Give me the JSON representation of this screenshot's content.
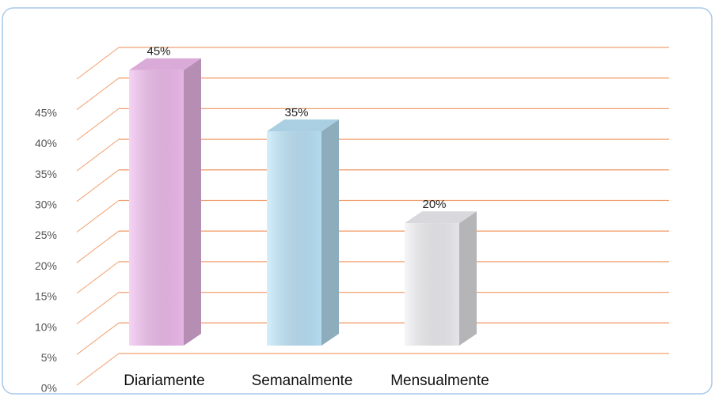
{
  "chart_data": {
    "type": "bar3d",
    "categories": [
      "Diariamente",
      "Semanalmente",
      "Mensualmente"
    ],
    "values": [
      45,
      35,
      20
    ],
    "value_labels": [
      "45%",
      "35%",
      "20%"
    ],
    "colors": [
      "#f2bdf0",
      "#bde6fb",
      "#f1f1f5"
    ],
    "ylim": [
      0,
      50
    ],
    "yticks": [
      {
        "value": 0,
        "label": "0%"
      },
      {
        "value": 5,
        "label": "5%"
      },
      {
        "value": 10,
        "label": "10%"
      },
      {
        "value": 15,
        "label": "15%"
      },
      {
        "value": 20,
        "label": "20%"
      },
      {
        "value": 25,
        "label": "25%"
      },
      {
        "value": 30,
        "label": "30%"
      },
      {
        "value": 35,
        "label": "35%"
      },
      {
        "value": 40,
        "label": "40%"
      },
      {
        "value": 45,
        "label": "45%"
      }
    ],
    "grid": true,
    "grid_color": "#f0a070"
  }
}
